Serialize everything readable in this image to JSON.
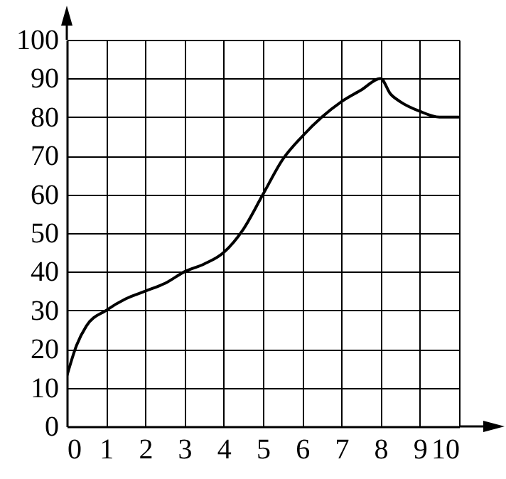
{
  "chart_data": {
    "type": "line",
    "x": [
      0,
      0.25,
      0.5,
      1,
      1.5,
      2,
      2.5,
      3,
      3.5,
      4,
      4.5,
      5,
      5.5,
      6,
      6.5,
      7,
      7.5,
      8,
      8.25,
      8.5,
      9,
      9.5,
      10
    ],
    "series": [
      {
        "color": "#000000",
        "values": [
          13,
          21,
          26,
          30,
          33,
          35,
          37,
          40,
          42,
          45,
          51,
          60,
          69,
          75,
          80,
          84,
          87,
          90,
          86,
          84,
          81.5,
          80,
          80
        ]
      }
    ],
    "xlim": [
      0,
      10
    ],
    "ylim": [
      0,
      100
    ],
    "xticks": [
      0,
      1,
      2,
      3,
      4,
      5,
      6,
      7,
      8,
      9,
      10
    ],
    "yticks": [
      0,
      10,
      20,
      30,
      40,
      50,
      60,
      70,
      80,
      90,
      100
    ],
    "grid": true,
    "marker": "none",
    "line_style": "solid"
  }
}
